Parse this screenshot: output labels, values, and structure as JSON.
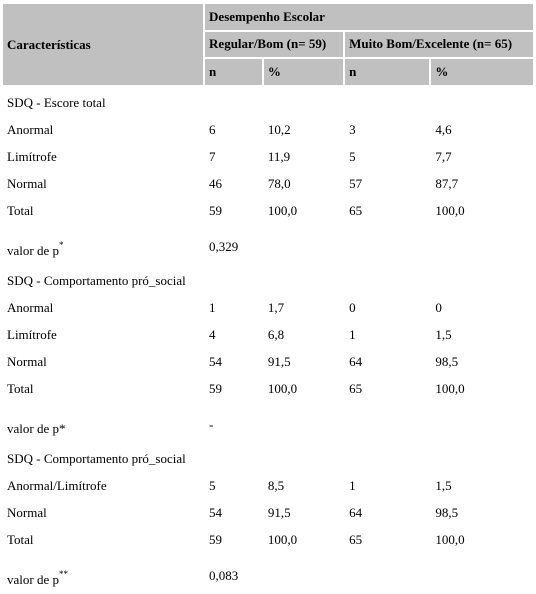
{
  "header": {
    "characteristics": "Características",
    "group": "Desempenho Escolar",
    "col_regular": "Regular/Bom (n= 59)",
    "col_muito": "Muito Bom/Excelente (n= 65)",
    "n": "n",
    "pct": "%"
  },
  "sections": [
    {
      "title": "SDQ - Escore total",
      "rows": [
        {
          "label": "Anormal",
          "n1": "6",
          "p1": "10,2",
          "n2": "3",
          "p2": "4,6"
        },
        {
          "label": "Limítrofe",
          "n1": "7",
          "p1": "11,9",
          "n2": "5",
          "p2": "7,7"
        },
        {
          "label": "Normal",
          "n1": "46",
          "p1": "78,0",
          "n2": "57",
          "p2": "87,7"
        },
        {
          "label": "Total",
          "n1": "59",
          "p1": "100,0",
          "n2": "65",
          "p2": "100,0"
        }
      ],
      "p_label": "valor de p",
      "p_sup": "*",
      "p_value": "0,329"
    },
    {
      "title": "SDQ - Comportamento pró_social",
      "rows": [
        {
          "label": "Anormal",
          "n1": "1",
          "p1": "1,7",
          "n2": "0",
          "p2": "0"
        },
        {
          "label": "Limítrofe",
          "n1": "4",
          "p1": "6,8",
          "n2": "1",
          "p2": "1,5"
        },
        {
          "label": "Normal",
          "n1": "54",
          "p1": "91,5",
          "n2": "64",
          "p2": "98,5"
        },
        {
          "label": "Total",
          "n1": "59",
          "p1": "100,0",
          "n2": "65",
          "p2": "100,0"
        }
      ],
      "p_label": "valor de p*",
      "p_value": "-"
    },
    {
      "title": "SDQ - Comportamento pró_social",
      "rows": [
        {
          "label": "Anormal/Limítrofe",
          "n1": "5",
          "p1": "8,5",
          "n2": "1",
          "p2": "1,5"
        },
        {
          "label": "Normal",
          "n1": "54",
          "p1": "91,5",
          "n2": "64",
          "p2": "98,5"
        },
        {
          "label": "Total",
          "n1": "59",
          "p1": "100,0",
          "n2": "65",
          "p2": "100,0"
        }
      ],
      "p_label": "valor de p",
      "p_sup": "**",
      "p_value": "0,083"
    }
  ]
}
